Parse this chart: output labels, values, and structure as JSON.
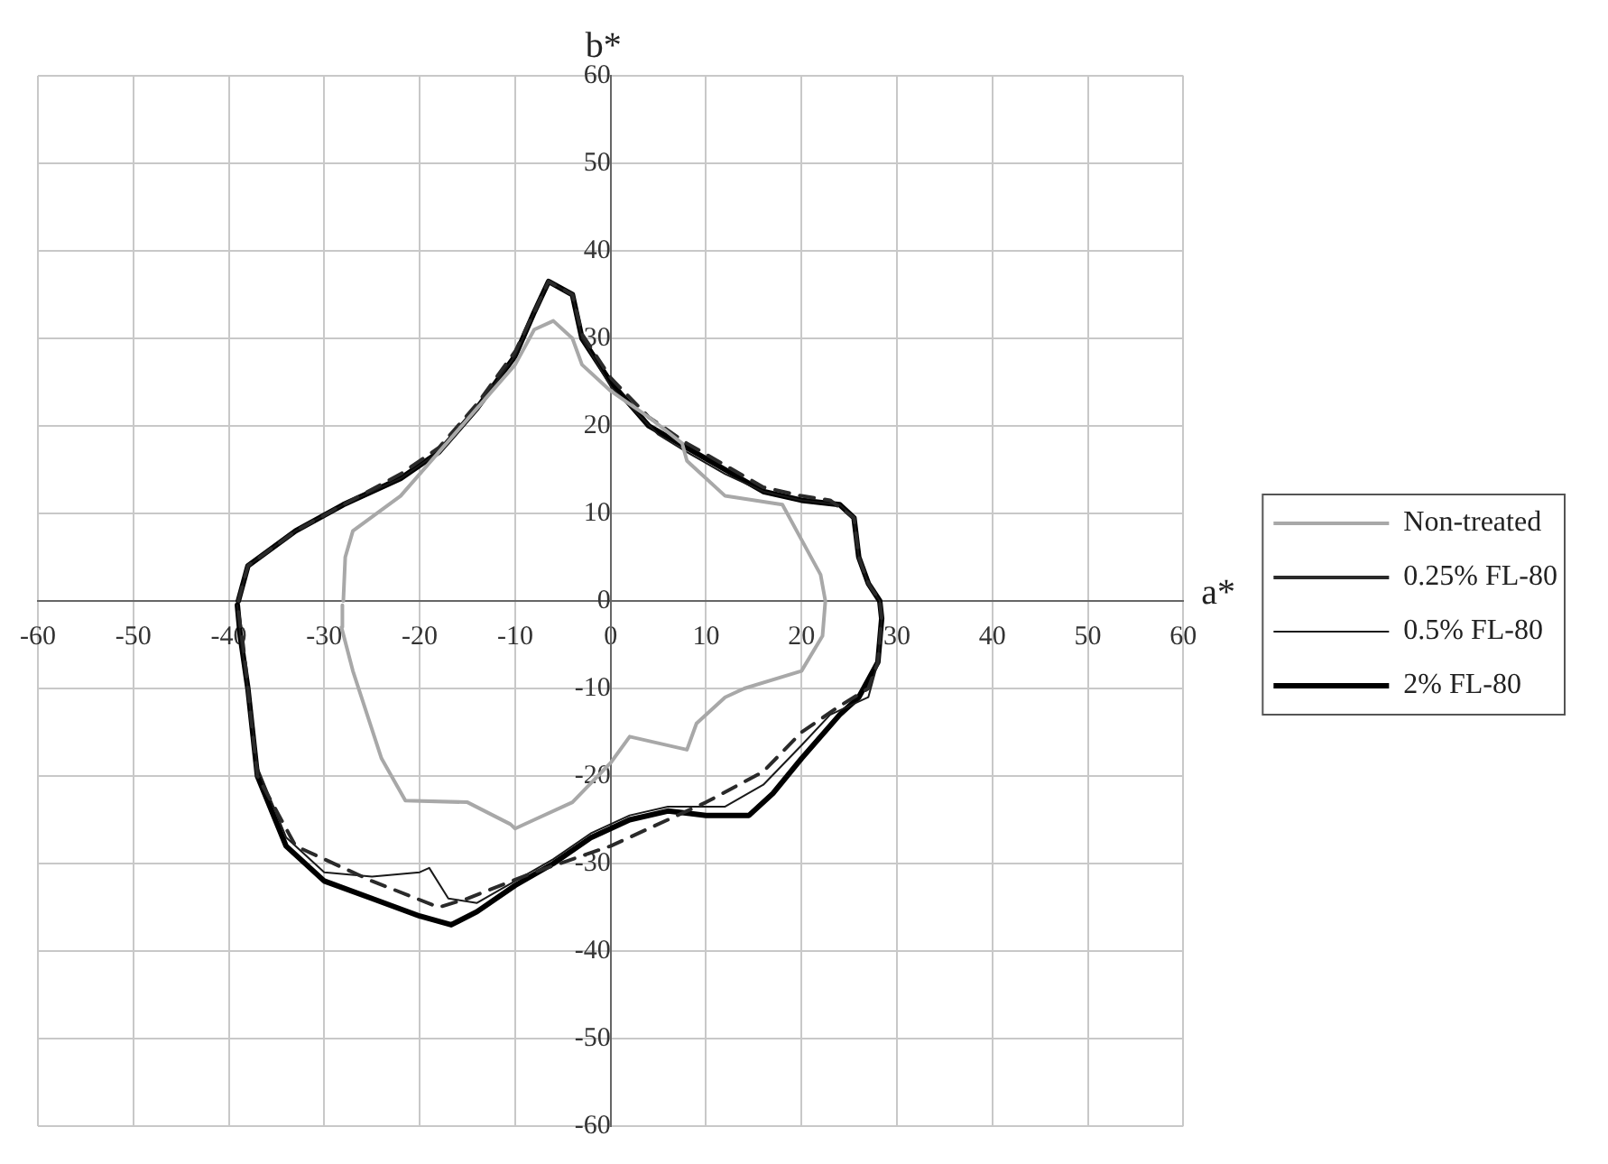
{
  "chart_data": {
    "type": "line",
    "xlabel": "a*",
    "ylabel": "b*",
    "xlim": [
      -60,
      60
    ],
    "ylim": [
      -60,
      60
    ],
    "xticks": [
      -60,
      -50,
      -40,
      -30,
      -20,
      -10,
      0,
      10,
      20,
      30,
      40,
      50,
      60
    ],
    "yticks": [
      -60,
      -50,
      -40,
      -30,
      -20,
      -10,
      0,
      10,
      20,
      30,
      40,
      50,
      60
    ],
    "grid": true,
    "legend": "right",
    "marker": "none",
    "series": [
      {
        "name": "Non-treated",
        "color": "#a8a8a8",
        "line_style": "solid",
        "x": [
          -28,
          -27.8,
          -27,
          -22,
          -18,
          -14,
          -10,
          -8,
          -6,
          -4,
          -3,
          0,
          4,
          7.5,
          8,
          12,
          18,
          20,
          22,
          22.5,
          22.2,
          20,
          14,
          12,
          9,
          8,
          2,
          0,
          -4,
          -8,
          -10,
          -10.5,
          -15,
          -21.5,
          -24,
          -27,
          -28.2,
          -28.1
        ],
        "values": [
          0,
          5,
          8,
          12,
          17,
          22,
          27,
          31,
          32,
          30,
          27,
          24,
          21,
          18,
          16,
          12,
          11,
          7,
          3,
          0,
          -4,
          -8,
          -10,
          -11,
          -14,
          -17,
          -15.5,
          -18.5,
          -23,
          -25,
          -26,
          -25.5,
          -23,
          -22.8,
          -18,
          -8,
          -3,
          -0.5
        ]
      },
      {
        "name": "0.25% FL-80",
        "color": "#2a2a2a",
        "line_style": "dashed",
        "x": [
          -39,
          -38,
          -33,
          -28,
          -22,
          -18,
          -14,
          -10,
          -8,
          -6.5,
          -4,
          -3,
          0,
          4,
          8,
          12,
          16,
          20,
          23,
          25.5,
          26,
          27,
          28.2,
          28.4,
          28,
          27,
          24,
          20,
          16,
          10,
          4,
          0,
          -8,
          -15,
          -18,
          -25,
          -33,
          -37,
          -38.5,
          -39.1
        ],
        "values": [
          0,
          4,
          8,
          11,
          14.5,
          17.5,
          22.5,
          28.5,
          33,
          36.5,
          35,
          30.5,
          25.5,
          21,
          18,
          15.5,
          13,
          12,
          11.5,
          9.5,
          5,
          2,
          0,
          -2,
          -7,
          -10,
          -12,
          -15,
          -19.5,
          -23,
          -26,
          -28,
          -31,
          -34,
          -35,
          -32,
          -28,
          -20,
          -5,
          -0.5
        ]
      },
      {
        "name": "0.5% FL-80",
        "color": "#1a1a1a",
        "line_style": "solid",
        "x": [
          -39,
          -38,
          -33,
          -28,
          -22,
          -18,
          -14,
          -10,
          -8,
          -6.5,
          -4,
          -3,
          0,
          5,
          8,
          12,
          16,
          20,
          24,
          25.5,
          26,
          27,
          28.2,
          28.4,
          28,
          27,
          23,
          20,
          16,
          12,
          6,
          2,
          -2,
          -6,
          -10,
          -14,
          -17,
          -19,
          -20,
          -25,
          -30,
          -34,
          -37,
          -38,
          -38.8,
          -39.1
        ],
        "values": [
          0,
          4,
          8,
          11,
          14,
          17,
          22,
          28,
          33,
          36.5,
          35,
          30,
          24.5,
          19,
          17,
          14.5,
          12.5,
          11.5,
          11,
          9.5,
          5,
          2,
          0,
          -2,
          -7,
          -11,
          -13,
          -16.5,
          -21,
          -23.5,
          -23.5,
          -24.5,
          -26.5,
          -29.5,
          -32,
          -34.5,
          -34,
          -30.5,
          -31,
          -31.5,
          -31,
          -27,
          -19,
          -10,
          -4,
          -0.5
        ]
      },
      {
        "name": "2% FL-80",
        "color": "#000000",
        "line_style": "solid",
        "x": [
          -39,
          -38,
          -33,
          -28,
          -22,
          -18,
          -14,
          -10,
          -8,
          -6.5,
          -4,
          -3,
          0,
          4,
          8,
          12,
          16,
          20,
          24,
          25.5,
          26,
          27,
          28.2,
          28.4,
          28,
          26,
          24,
          20,
          17,
          14.5,
          10,
          6,
          2,
          -2,
          -6,
          -10,
          -14,
          -16.7,
          -20,
          -25,
          -30,
          -34,
          -37,
          -38,
          -38.8,
          -39.1
        ],
        "values": [
          0,
          4,
          8,
          11,
          14,
          17,
          22,
          28,
          33,
          36.5,
          35,
          30,
          25,
          20,
          17.5,
          15,
          12.5,
          11.5,
          11,
          9.5,
          5,
          2,
          0,
          -2,
          -7,
          -11,
          -13,
          -18,
          -22,
          -24.5,
          -24.5,
          -24,
          -25,
          -27,
          -30,
          -32.5,
          -35.5,
          -37,
          -36,
          -34,
          -32,
          -28,
          -20,
          -10,
          -4,
          -0.5
        ]
      }
    ]
  }
}
